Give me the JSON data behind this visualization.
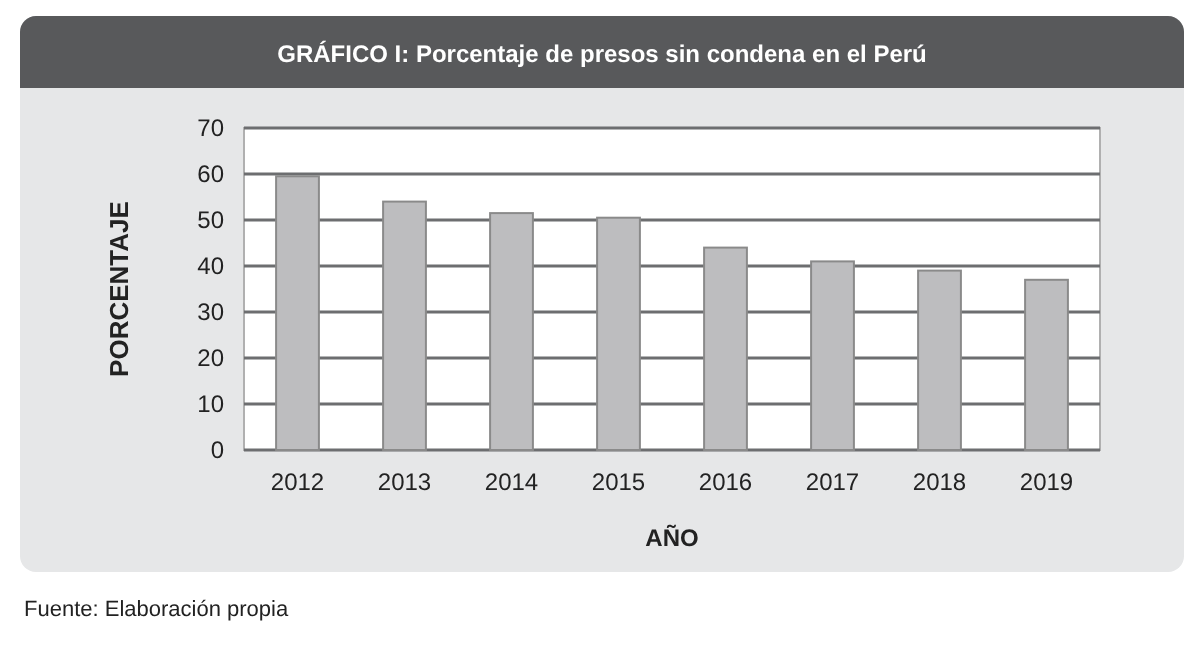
{
  "chart_data": {
    "type": "bar",
    "title": "GRÁFICO I: Porcentaje de presos sin condena en el Perú",
    "xlabel": "AÑO",
    "ylabel": "PORCENTAJE",
    "categories": [
      "2012",
      "2013",
      "2014",
      "2015",
      "2016",
      "2017",
      "2018",
      "2019"
    ],
    "values": [
      59.5,
      54,
      51.5,
      50.5,
      44,
      41,
      39,
      37
    ],
    "color": "#bdbdbf",
    "ylim": [
      0,
      70
    ],
    "yticks": [
      0,
      10,
      20,
      30,
      40,
      50,
      60,
      70
    ],
    "grid": "y",
    "annotations": [
      "Fuente: Elaboración propia"
    ]
  }
}
